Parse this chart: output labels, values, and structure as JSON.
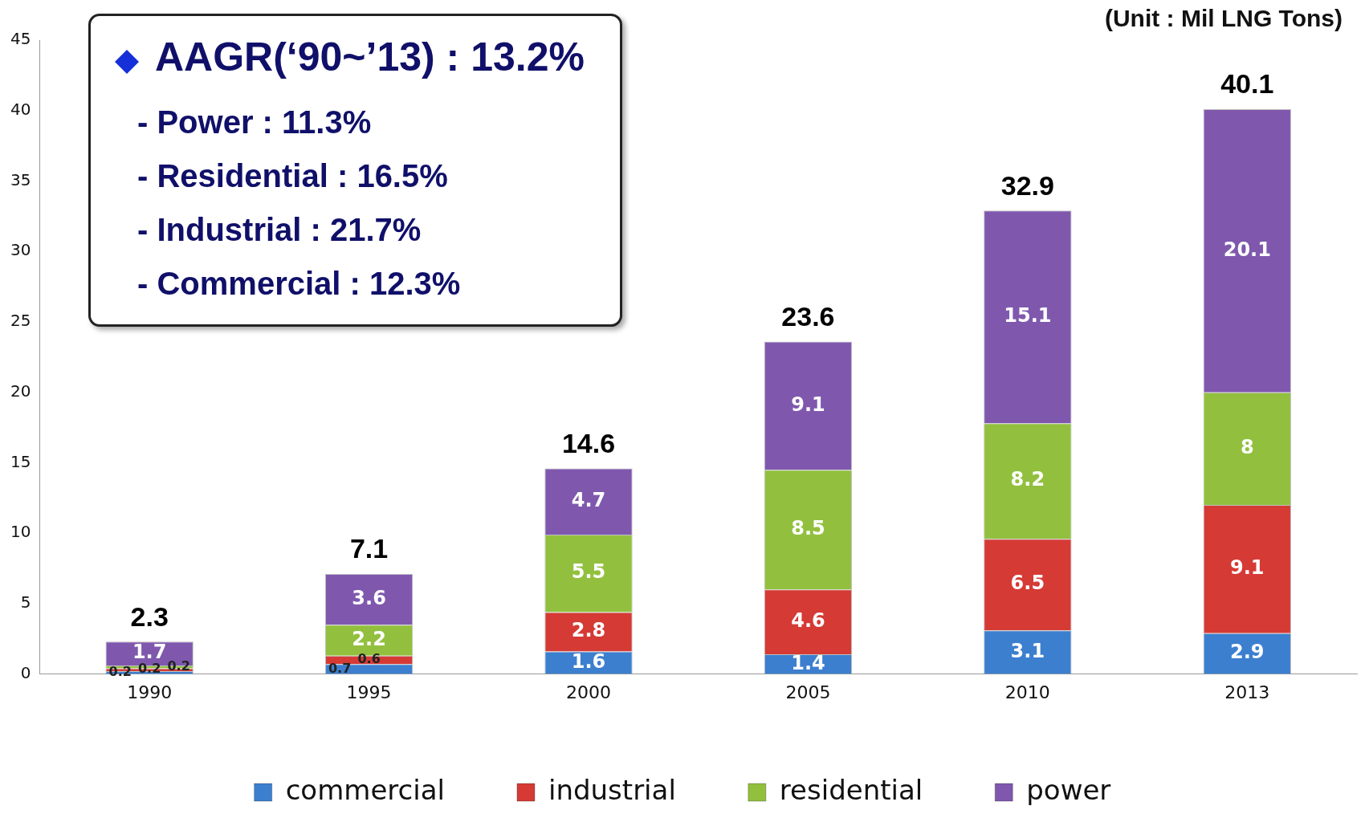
{
  "chart_data": {
    "type": "bar",
    "stacked": true,
    "categories": [
      "1990",
      "1995",
      "2000",
      "2005",
      "2010",
      "2013"
    ],
    "series": [
      {
        "name": "commercial",
        "color": "#3c7fcf",
        "values": [
          0.2,
          0.7,
          1.6,
          1.4,
          3.1,
          2.9
        ]
      },
      {
        "name": "industrial",
        "color": "#d53a35",
        "values": [
          0.2,
          0.6,
          2.8,
          4.6,
          6.5,
          9.1
        ]
      },
      {
        "name": "residential",
        "color": "#92c03e",
        "values": [
          0.2,
          2.2,
          5.5,
          8.5,
          8.2,
          8
        ]
      },
      {
        "name": "power",
        "color": "#7f58ae",
        "values": [
          1.7,
          3.6,
          4.7,
          9.1,
          15.1,
          20.1
        ]
      }
    ],
    "ylim": [
      0,
      45
    ],
    "yticks": [
      0,
      5,
      10,
      15,
      20,
      25,
      30,
      35,
      40,
      45
    ],
    "grid": false,
    "legend": "bottom",
    "data_labels": true,
    "totals": [
      "2.3",
      "7.1",
      "14.6",
      "23.6",
      "32.9",
      "40.1"
    ],
    "annotations": [
      "AAGR(‘90~’13) : 13.2%",
      "- Power : 11.3%",
      "- Residential : 16.5%",
      "- Industrial : 21.7%",
      "- Commercial : 12.3%",
      "(Unit : Mil LNG Tons)"
    ]
  }
}
